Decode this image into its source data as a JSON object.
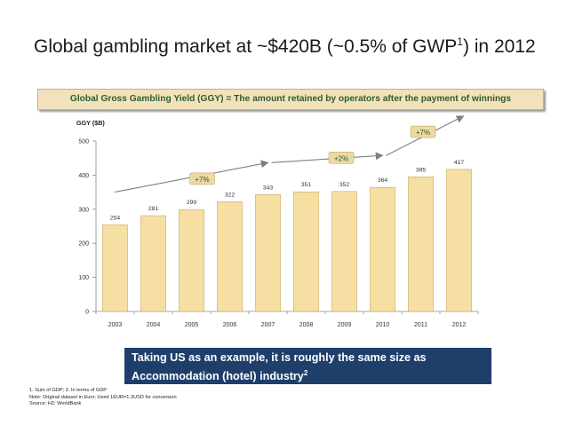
{
  "page": {
    "title_main": "Global gambling market at ~$420B (~0.5% of GWP",
    "title_sup": "1",
    "title_end": ") in 2012",
    "banner": "Global Gross Gambling Yield (GGY) = The amount retained by operators after the payment of winnings",
    "callout_line1": "Taking US as an example, it is roughly the same size as",
    "callout_line2": "Accommodation (hotel) industry",
    "callout_sup": "2",
    "footnote1": "1. Sum of GDP; 2. In terms of GDP",
    "footnote2": "Note: Original dataset in Euro; Used 1EUR=1.3USD for conversion",
    "footnote3": "Source: H2; WorldBank"
  },
  "colors": {
    "bar_fill": "#f6dfa3",
    "bar_stroke": "#c8a95c",
    "badge_fill": "#eed9a4",
    "badge_text": "#2b5c23",
    "trend_line": "#7f7f7f",
    "callout_bg": "#1f3f6b"
  },
  "chart_data": {
    "type": "bar",
    "ylabel": "GGY ($B)",
    "categories": [
      "2003",
      "2004",
      "2005",
      "2006",
      "2007",
      "2008",
      "2009",
      "2010",
      "2011",
      "2012"
    ],
    "values": [
      254,
      281,
      299,
      322,
      343,
      351,
      352,
      364,
      395,
      417
    ],
    "value_labels": [
      "254",
      "281",
      "299",
      "322",
      "343",
      "351",
      "352",
      "364",
      "395",
      "417"
    ],
    "ylim": [
      0,
      500
    ],
    "yticks": [
      0,
      100,
      200,
      300,
      400,
      500
    ],
    "ytick_labels": [
      "0",
      "100",
      "200",
      "300",
      "400",
      "500"
    ],
    "grid": false,
    "annotations": [
      {
        "label": "+7%",
        "from_year": "2003",
        "to_year": "2007"
      },
      {
        "label": "+2%",
        "from_year": "2007",
        "to_year": "2010"
      },
      {
        "label": "+7%",
        "from_year": "2010",
        "to_year": "2012"
      }
    ]
  }
}
